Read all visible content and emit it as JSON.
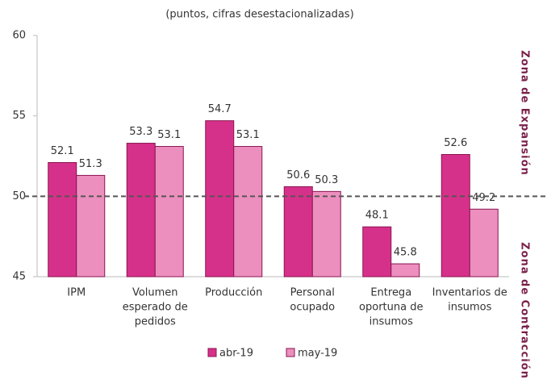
{
  "chart_data": {
    "type": "bar",
    "subtitle": "(puntos, cifras desestacionalizadas)",
    "categories": [
      [
        "IPM"
      ],
      [
        "Volumen",
        "esperado de",
        "pedidos"
      ],
      [
        "Producción"
      ],
      [
        "Personal",
        "ocupado"
      ],
      [
        "Entrega",
        "oportuna de",
        "insumos"
      ],
      [
        "Inventarios de",
        "insumos"
      ]
    ],
    "series": [
      {
        "name": "abr-19",
        "color": "#d6318a",
        "values": [
          52.1,
          53.3,
          54.7,
          50.6,
          48.1,
          52.6
        ]
      },
      {
        "name": "may-19",
        "color": "#ec8fbe",
        "values": [
          51.3,
          53.1,
          53.1,
          50.3,
          45.8,
          49.2
        ]
      }
    ],
    "ylim": [
      45,
      60
    ],
    "yticks": [
      45,
      50,
      55,
      60
    ],
    "reference_line": 50,
    "annotations": [
      "Zona de Expansión",
      "Zona de Contracción"
    ]
  }
}
